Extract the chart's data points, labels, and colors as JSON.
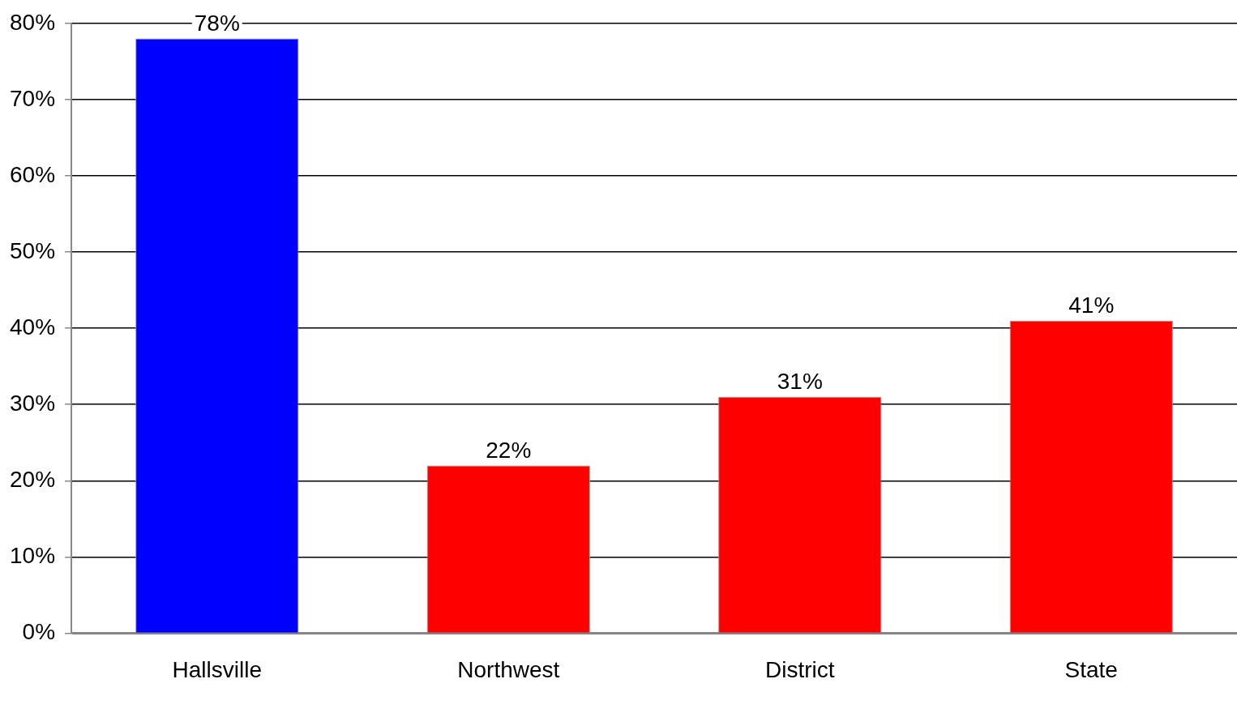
{
  "chart_data": {
    "type": "bar",
    "categories": [
      "Hallsville",
      "Northwest",
      "District",
      "State"
    ],
    "values": [
      78,
      22,
      31,
      41
    ],
    "colors": [
      "#0000ff",
      "#ff0000",
      "#ff0000",
      "#ff0000"
    ],
    "value_labels": [
      "78%",
      "22%",
      "31%",
      "41%"
    ],
    "ylim": [
      0,
      80
    ],
    "yticks": [
      {
        "value": 0,
        "label": "0%"
      },
      {
        "value": 10,
        "label": "10%"
      },
      {
        "value": 20,
        "label": "20%"
      },
      {
        "value": 30,
        "label": "30%"
      },
      {
        "value": 40,
        "label": "40%"
      },
      {
        "value": 50,
        "label": "50%"
      },
      {
        "value": 60,
        "label": "60%"
      },
      {
        "value": 70,
        "label": "70%"
      },
      {
        "value": 80,
        "label": "80%"
      }
    ],
    "grid": "y",
    "legend": false
  }
}
